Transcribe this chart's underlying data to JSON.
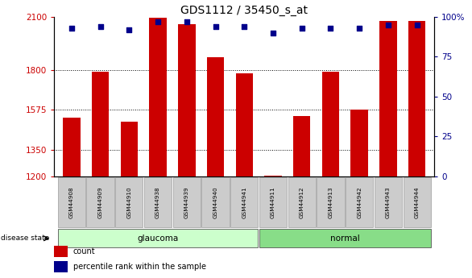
{
  "title": "GDS1112 / 35450_s_at",
  "samples": [
    "GSM44908",
    "GSM44909",
    "GSM44910",
    "GSM44938",
    "GSM44939",
    "GSM44940",
    "GSM44941",
    "GSM44911",
    "GSM44912",
    "GSM44913",
    "GSM44942",
    "GSM44943",
    "GSM44944"
  ],
  "count_values": [
    1530,
    1790,
    1510,
    2095,
    2060,
    1870,
    1780,
    1205,
    1540,
    1790,
    1575,
    2075,
    2075
  ],
  "percentile_values": [
    93,
    94,
    92,
    97,
    97,
    94,
    94,
    90,
    93,
    93,
    93,
    95,
    95
  ],
  "glaucoma_indices": [
    0,
    1,
    2,
    3,
    4,
    5,
    6
  ],
  "normal_indices": [
    7,
    8,
    9,
    10,
    11,
    12
  ],
  "ylim_left": [
    1200,
    2100
  ],
  "yticks_left": [
    1200,
    1350,
    1575,
    1800,
    2100
  ],
  "ylim_right": [
    0,
    100
  ],
  "yticks_right": [
    0,
    25,
    50,
    75,
    100
  ],
  "bar_color": "#cc0000",
  "dot_color": "#00008b",
  "glaucoma_bg": "#ccffcc",
  "normal_bg": "#88dd88",
  "tick_bg": "#cccccc",
  "title_fontsize": 10,
  "axis_color_left": "#cc0000",
  "axis_color_right": "#00008b",
  "disease_label": "disease state",
  "legend_count_label": "count",
  "legend_pct_label": "percentile rank within the sample"
}
